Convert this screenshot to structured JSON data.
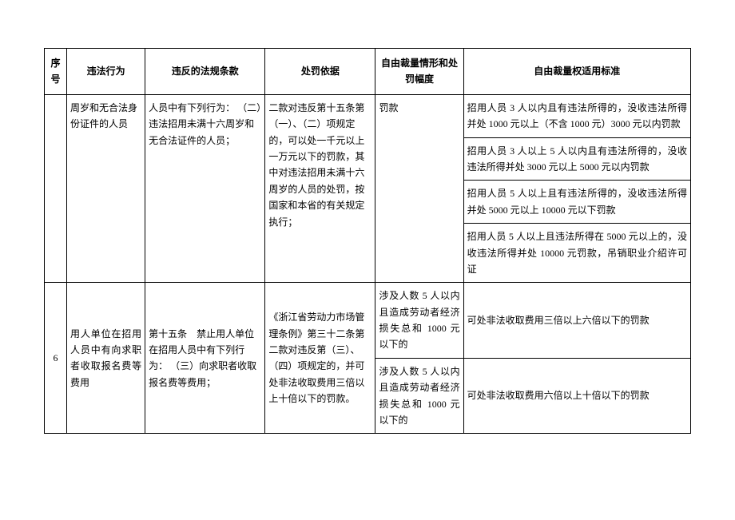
{
  "headers": {
    "seq": "序号",
    "violation": "违法行为",
    "regulation": "违反的法规条款",
    "basis": "处罚依据",
    "scope": "自由裁量情形和处罚幅度",
    "standard": "自由裁量权适用标准"
  },
  "row5": {
    "violation_cont": "周岁和无合法身份证件的人员",
    "regulation_cont": "人员中有下列行为：\n（二）违法招用未满十六周岁和无合法证件的人员；",
    "basis_cont": "二款对违反第十五条第（一）、（二）项规定的，可以处一千元以上一万元以下的罚款，其中对违法招用未满十六周岁的人员的处罚，按国家和本省的有关规定执行；",
    "scope_cont": "罚款",
    "standards": [
      "招用人员 3 人以内且有违法所得的，没收违法所得并处 1000 元以上（不含 1000 元）3000 元以内罚款",
      "招用人员 3 人以上 5 人以内且有违法所得的，没收违法所得并处 3000 元以上 5000 元以内罚款",
      "招用人员 5 人以上且有违法所得的，没收违法所得并处 5000 元以上 10000 元以下罚款",
      "招用人员 5 人以上且违法所得在 5000 元以上的，没收违法所得并处 10000 元罚款，吊销职业介绍许可证"
    ]
  },
  "row6": {
    "seq": "6",
    "violation": "用人单位在招用人员中有向求职者收取报名费等费用",
    "regulation": "第十五条　禁止用人单位在招用人员中有下列行为：\n（三）向求职者收取报名费等费用；",
    "basis": "《浙江省劳动力市场管理条例》第三十二条第二款对违反第（三）、（四）项规定的，并可处非法收取费用三倍以上十倍以下的罚款。",
    "scopes": [
      "涉及人数 5 人以内且造成劳动者经济损失总和 1000 元以下的",
      "涉及人数 5 人以内且造成劳动者经济损失总和 1000 元以下的"
    ],
    "standards": [
      "可处非法收取费用三倍以上六倍以下的罚款",
      "可处非法收取费用六倍以上十倍以下的罚款"
    ]
  }
}
